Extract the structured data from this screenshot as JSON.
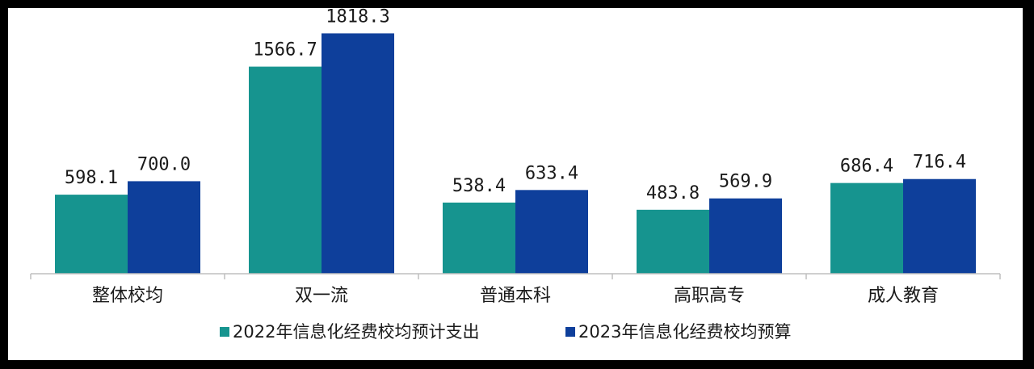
{
  "chart_data": {
    "type": "bar",
    "title": "",
    "xlabel": "",
    "ylabel": "",
    "categories": [
      "整体校均",
      "双一流",
      "普通本科",
      "高职高专",
      "成人教育"
    ],
    "series": [
      {
        "name": "2022年信息化经费校均预计支出",
        "color": "#16948f",
        "values": [
          598.1,
          1566.7,
          538.4,
          483.8,
          686.4
        ],
        "labels": [
          "598.1",
          "1566.7",
          "538.4",
          "483.8",
          "686.4"
        ]
      },
      {
        "name": "2023年信息化经费校均预算",
        "color": "#0e3f9b",
        "values": [
          700.0,
          1818.3,
          633.4,
          569.9,
          716.4
        ],
        "labels": [
          "700.0",
          "1818.3",
          "633.4",
          "569.9",
          "716.4"
        ]
      }
    ],
    "ylim": [
      0,
      1900
    ],
    "grid": false,
    "legend_position": "bottom"
  }
}
